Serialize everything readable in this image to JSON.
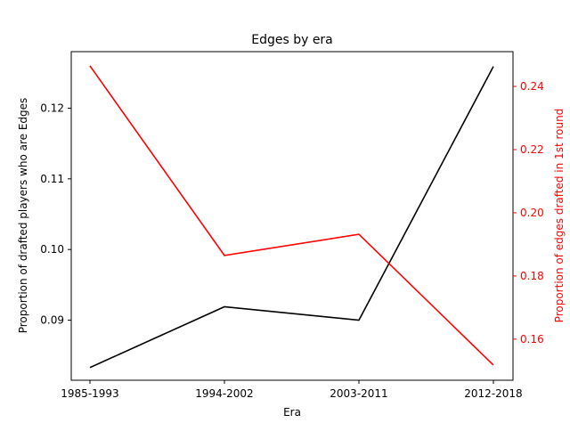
{
  "chart_data": {
    "type": "line",
    "title": "Edges by era",
    "xlabel": "Era",
    "categories": [
      "1985-1993",
      "1994-2002",
      "2003-2011",
      "2012-2018"
    ],
    "y_left": {
      "label": "Proportion of drafted players who are Edges",
      "color": "#000000",
      "ylim": [
        0.0815,
        0.128
      ],
      "ticks": [
        "0.09",
        "0.10",
        "0.11",
        "0.12"
      ]
    },
    "y_right": {
      "label": "Proportion of edges drafted in 1st round",
      "color": "#ff0000",
      "ylim": [
        0.147,
        0.251
      ],
      "ticks": [
        "0.16",
        "0.18",
        "0.20",
        "0.22",
        "0.24"
      ]
    },
    "series": [
      {
        "axis": "left",
        "color": "#000000",
        "values": [
          0.0833,
          0.0919,
          0.09,
          0.1259
        ]
      },
      {
        "axis": "right",
        "color": "#ff0000",
        "values": [
          0.2465,
          0.1865,
          0.1932,
          0.1518
        ]
      }
    ],
    "grid": false,
    "legend": "none"
  }
}
